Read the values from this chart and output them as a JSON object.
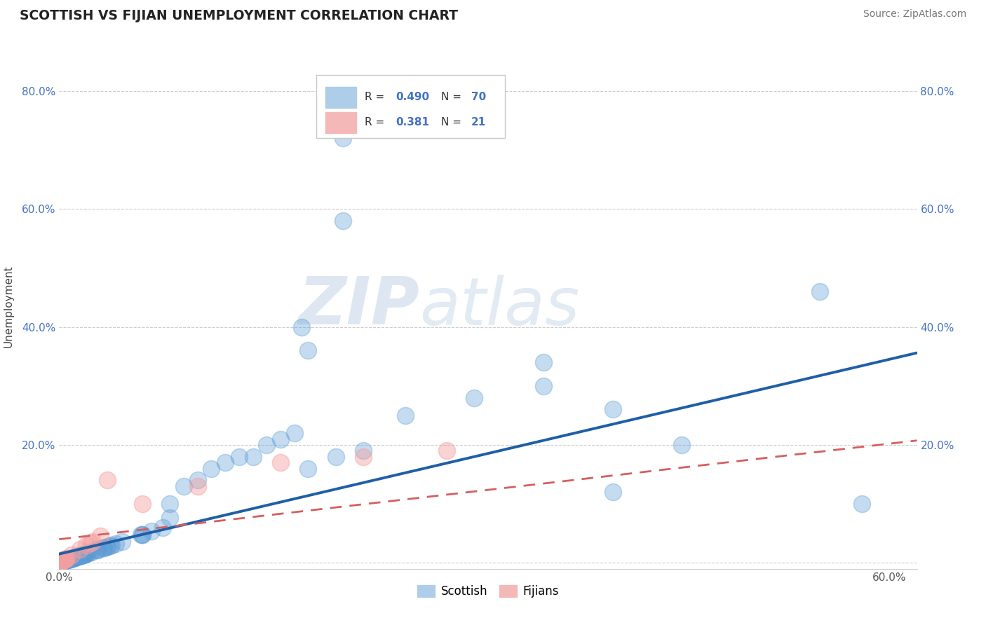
{
  "title": "SCOTTISH VS FIJIAN UNEMPLOYMENT CORRELATION CHART",
  "source_text": "Source: ZipAtlas.com",
  "ylabel": "Unemployment",
  "xlim": [
    0.0,
    0.62
  ],
  "ylim": [
    -0.01,
    0.88
  ],
  "scottish_color": "#5b9bd5",
  "scottish_edge": "#5b9bd5",
  "fijian_color": "#f4a0a0",
  "fijian_edge": "#f4a0a0",
  "trend_blue": "#1f5fa6",
  "trend_pink": "#d45f5f",
  "watermark": "ZIPatlas",
  "background_color": "#ffffff",
  "grid_color": "#c8c8c8",
  "scottish_R": "0.490",
  "scottish_N": "70",
  "fijian_R": "0.381",
  "fijian_N": "21",
  "legend_label_scottish": "Scottish",
  "legend_label_fijian": "Fijians"
}
